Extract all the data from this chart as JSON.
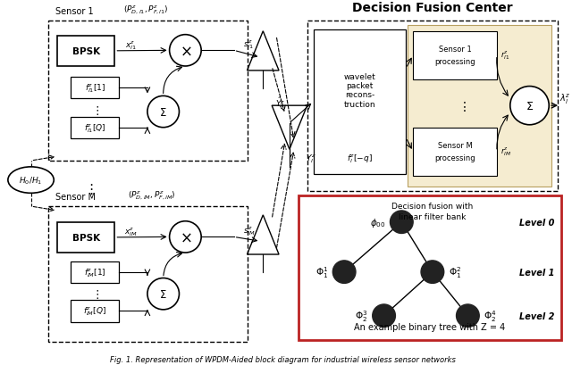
{
  "bg_color": "#ffffff",
  "fig_caption": "Fig. 1. Representation of WPDM-Aided block diagram for industrial wireless sensor networks",
  "dfc_title": "Decision Fusion Center",
  "tree_caption": "An example binary tree with Z = 4"
}
